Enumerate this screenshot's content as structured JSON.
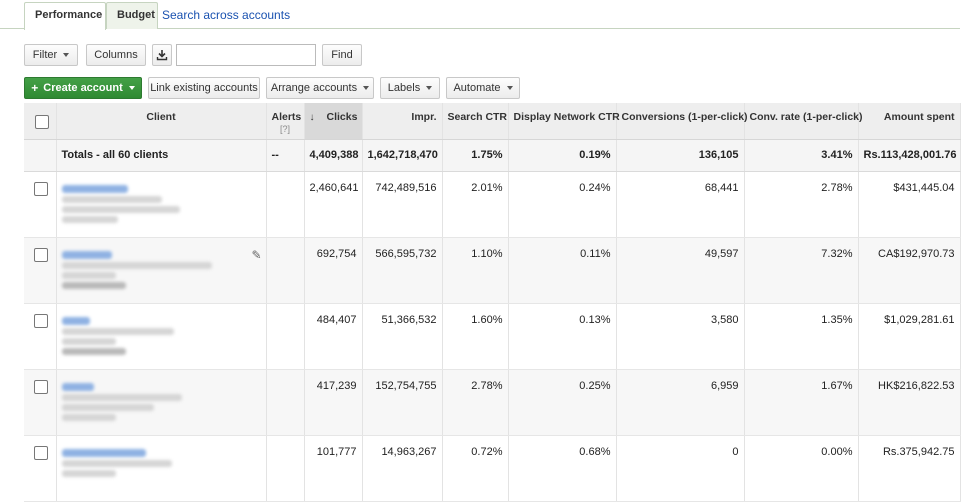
{
  "tabs": [
    {
      "label": "Performance",
      "active": true
    },
    {
      "label": "Budget",
      "active": false
    }
  ],
  "search_link": "Search across accounts",
  "toolbar": {
    "filter_label": "Filter",
    "columns_label": "Columns",
    "download_icon": "download-icon",
    "search_value": "",
    "find_label": "Find",
    "create_label": "Create account",
    "link_label": "Link existing accounts",
    "arrange_label": "Arrange accounts",
    "labels_label": "Labels",
    "automate_label": "Automate"
  },
  "table": {
    "columns": {
      "client": "Client",
      "alerts": "Alerts",
      "alerts_help": "[?]",
      "clicks": "Clicks",
      "impr": "Impr.",
      "search_ctr": "Search CTR",
      "display_ctr": "Display Network CTR",
      "conversions": "Conversions (1-per-click)",
      "conv_rate": "Conv. rate (1-per-click)",
      "amount": "Amount spent"
    },
    "sort_arrow": "↓",
    "totals": {
      "label": "Totals - all 60 clients",
      "alerts": "--",
      "clicks": "4,409,388",
      "impr": "1,642,718,470",
      "search_ctr": "1.75%",
      "display_ctr": "0.19%",
      "conversions": "136,105",
      "conv_rate": "3.41%",
      "amount": "Rs.113,428,001.76"
    },
    "rows": [
      {
        "clicks": "2,460,641",
        "impr": "742,489,516",
        "search_ctr": "2.01%",
        "display_ctr": "0.24%",
        "conversions": "68,441",
        "conv_rate": "2.78%",
        "amount": "$431,445.04"
      },
      {
        "clicks": "692,754",
        "impr": "566,595,732",
        "search_ctr": "1.10%",
        "display_ctr": "0.11%",
        "conversions": "49,597",
        "conv_rate": "7.32%",
        "amount": "CA$192,970.73"
      },
      {
        "clicks": "484,407",
        "impr": "51,366,532",
        "search_ctr": "1.60%",
        "display_ctr": "0.13%",
        "conversions": "3,580",
        "conv_rate": "1.35%",
        "amount": "$1,029,281.61"
      },
      {
        "clicks": "417,239",
        "impr": "152,754,755",
        "search_ctr": "2.78%",
        "display_ctr": "0.25%",
        "conversions": "6,959",
        "conv_rate": "1.67%",
        "amount": "HK$216,822.53"
      },
      {
        "clicks": "101,777",
        "impr": "14,963,267",
        "search_ctr": "0.72%",
        "display_ctr": "0.68%",
        "conversions": "0",
        "conv_rate": "0.00%",
        "amount": "Rs.375,942.75"
      }
    ]
  },
  "colors": {
    "create_button": "#3a9a3e",
    "link": "#1a52b0",
    "header_bg": "#eeeeee"
  }
}
